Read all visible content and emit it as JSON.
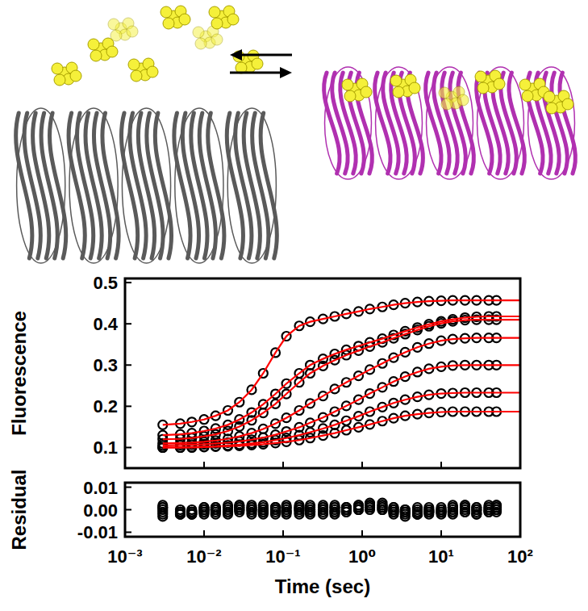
{
  "chart_data": [
    {
      "type": "scatter",
      "y_label": "Fluorescence",
      "log": "x",
      "tick_labels": "y",
      "xlim": [
        0.001,
        100
      ],
      "ylim": [
        0.05,
        0.51
      ],
      "xticks": [
        {
          "value": 0.001,
          "label": "10⁻³"
        },
        {
          "value": 0.01,
          "label": "10⁻²"
        },
        {
          "value": 0.1,
          "label": "10⁻¹"
        },
        {
          "value": 1,
          "label": "10⁰"
        },
        {
          "value": 10,
          "label": "10¹"
        },
        {
          "value": 100,
          "label": "10²"
        }
      ],
      "yticks": [
        0.1,
        0.2,
        0.3,
        0.4,
        0.5
      ],
      "x": [
        0.003,
        0.005,
        0.007,
        0.01,
        0.014,
        0.02,
        0.028,
        0.04,
        0.056,
        0.08,
        0.11,
        0.16,
        0.22,
        0.32,
        0.45,
        0.63,
        0.9,
        1.25,
        1.8,
        2.5,
        3.5,
        5,
        7,
        10,
        14,
        20,
        28,
        40,
        50,
        100
      ],
      "series": [
        {
          "type": "scatter",
          "marker": "circle",
          "color": "#000000",
          "values": [
            0.155,
            0.158,
            0.162,
            0.168,
            0.177,
            0.19,
            0.21,
            0.24,
            0.28,
            0.33,
            0.37,
            0.395,
            0.405,
            0.412,
            0.418,
            0.424,
            0.43,
            0.436,
            0.441,
            0.446,
            0.45,
            0.453,
            0.455,
            0.456,
            0.457,
            0.457,
            0.457,
            0.457,
            0.457,
            null
          ]
        },
        {
          "type": "scatter",
          "marker": "circle",
          "color": "#000000",
          "values": [
            0.13,
            0.132,
            0.135,
            0.14,
            0.146,
            0.155,
            0.168,
            0.185,
            0.205,
            0.23,
            0.255,
            0.28,
            0.3,
            0.315,
            0.327,
            0.337,
            0.346,
            0.355,
            0.364,
            0.373,
            0.382,
            0.391,
            0.399,
            0.406,
            0.411,
            0.415,
            0.417,
            0.418,
            0.418,
            null
          ]
        },
        {
          "type": "scatter",
          "marker": "circle",
          "color": "#000000",
          "values": [
            0.12,
            0.121,
            0.123,
            0.127,
            0.132,
            0.14,
            0.151,
            0.166,
            0.184,
            0.206,
            0.23,
            0.258,
            0.28,
            0.298,
            0.312,
            0.324,
            0.335,
            0.345,
            0.355,
            0.365,
            0.375,
            0.385,
            0.394,
            0.401,
            0.406,
            0.409,
            0.41,
            0.41,
            0.41,
            null
          ]
        },
        {
          "type": "scatter",
          "marker": "circle",
          "color": "#000000",
          "values": [
            0.11,
            0.111,
            0.112,
            0.114,
            0.117,
            0.121,
            0.127,
            0.135,
            0.145,
            0.158,
            0.172,
            0.19,
            0.207,
            0.225,
            0.242,
            0.258,
            0.274,
            0.289,
            0.304,
            0.318,
            0.331,
            0.343,
            0.352,
            0.359,
            0.363,
            0.365,
            0.366,
            0.366,
            0.366,
            null
          ]
        },
        {
          "type": "scatter",
          "marker": "circle",
          "color": "#000000",
          "values": [
            0.105,
            0.106,
            0.107,
            0.108,
            0.11,
            0.112,
            0.115,
            0.119,
            0.124,
            0.131,
            0.139,
            0.149,
            0.16,
            0.173,
            0.187,
            0.201,
            0.216,
            0.231,
            0.246,
            0.26,
            0.272,
            0.283,
            0.291,
            0.296,
            0.299,
            0.3,
            0.3,
            0.3,
            0.3,
            null
          ]
        },
        {
          "type": "scatter",
          "marker": "circle",
          "color": "#000000",
          "values": [
            0.1,
            0.1,
            0.101,
            0.102,
            0.103,
            0.105,
            0.107,
            0.11,
            0.113,
            0.118,
            0.123,
            0.13,
            0.137,
            0.146,
            0.155,
            0.165,
            0.176,
            0.187,
            0.198,
            0.208,
            0.216,
            0.223,
            0.228,
            0.231,
            0.232,
            0.233,
            0.233,
            0.233,
            0.233,
            null
          ]
        },
        {
          "type": "scatter",
          "marker": "circle",
          "color": "#000000",
          "values": [
            0.1,
            0.1,
            0.1,
            0.101,
            0.102,
            0.103,
            0.104,
            0.106,
            0.108,
            0.111,
            0.114,
            0.118,
            0.123,
            0.129,
            0.135,
            0.142,
            0.149,
            0.156,
            0.164,
            0.171,
            0.177,
            0.181,
            0.184,
            0.186,
            0.187,
            0.187,
            0.187,
            0.187,
            0.187,
            null
          ]
        },
        {
          "type": "line",
          "line_style": "solid",
          "color": "#ff0000",
          "values": [
            0.155,
            0.158,
            0.162,
            0.168,
            0.177,
            0.19,
            0.21,
            0.24,
            0.28,
            0.33,
            0.37,
            0.395,
            0.405,
            0.412,
            0.418,
            0.424,
            0.43,
            0.436,
            0.441,
            0.446,
            0.45,
            0.453,
            0.455,
            0.456,
            0.457,
            0.457,
            0.457,
            0.457,
            0.457,
            0.457
          ]
        },
        {
          "type": "line",
          "line_style": "solid",
          "color": "#ff0000",
          "values": [
            0.13,
            0.132,
            0.135,
            0.14,
            0.146,
            0.155,
            0.168,
            0.185,
            0.205,
            0.23,
            0.255,
            0.28,
            0.3,
            0.315,
            0.327,
            0.337,
            0.346,
            0.355,
            0.364,
            0.373,
            0.382,
            0.391,
            0.399,
            0.406,
            0.411,
            0.415,
            0.417,
            0.418,
            0.418,
            0.418
          ]
        },
        {
          "type": "line",
          "line_style": "solid",
          "color": "#ff0000",
          "values": [
            0.12,
            0.121,
            0.123,
            0.127,
            0.132,
            0.14,
            0.151,
            0.166,
            0.184,
            0.206,
            0.23,
            0.258,
            0.28,
            0.298,
            0.312,
            0.324,
            0.335,
            0.345,
            0.355,
            0.365,
            0.375,
            0.385,
            0.394,
            0.401,
            0.406,
            0.409,
            0.41,
            0.41,
            0.41,
            0.41
          ]
        },
        {
          "type": "line",
          "line_style": "solid",
          "color": "#ff0000",
          "values": [
            0.11,
            0.111,
            0.112,
            0.114,
            0.117,
            0.121,
            0.127,
            0.135,
            0.145,
            0.158,
            0.172,
            0.19,
            0.207,
            0.225,
            0.242,
            0.258,
            0.274,
            0.289,
            0.304,
            0.318,
            0.331,
            0.343,
            0.352,
            0.359,
            0.363,
            0.365,
            0.366,
            0.366,
            0.366,
            0.366
          ]
        },
        {
          "type": "line",
          "line_style": "solid",
          "color": "#ff0000",
          "values": [
            0.105,
            0.106,
            0.107,
            0.108,
            0.11,
            0.112,
            0.115,
            0.119,
            0.124,
            0.131,
            0.139,
            0.149,
            0.16,
            0.173,
            0.187,
            0.201,
            0.216,
            0.231,
            0.246,
            0.26,
            0.272,
            0.283,
            0.291,
            0.296,
            0.299,
            0.3,
            0.3,
            0.3,
            0.3,
            0.3
          ]
        },
        {
          "type": "line",
          "line_style": "solid",
          "color": "#ff0000",
          "values": [
            0.1,
            0.1,
            0.101,
            0.102,
            0.103,
            0.105,
            0.107,
            0.11,
            0.113,
            0.118,
            0.123,
            0.13,
            0.137,
            0.146,
            0.155,
            0.165,
            0.176,
            0.187,
            0.198,
            0.208,
            0.216,
            0.223,
            0.228,
            0.231,
            0.232,
            0.233,
            0.233,
            0.233,
            0.233,
            0.233
          ]
        },
        {
          "type": "line",
          "line_style": "solid",
          "color": "#ff0000",
          "values": [
            0.1,
            0.1,
            0.1,
            0.101,
            0.102,
            0.103,
            0.104,
            0.106,
            0.108,
            0.111,
            0.114,
            0.118,
            0.123,
            0.129,
            0.135,
            0.142,
            0.149,
            0.156,
            0.164,
            0.171,
            0.177,
            0.181,
            0.184,
            0.186,
            0.187,
            0.187,
            0.187,
            0.187,
            0.187,
            0.187
          ]
        }
      ]
    },
    {
      "type": "scatter",
      "x_label": "Time (sec)",
      "y_label": "Residual",
      "log": "x",
      "xlim": [
        0.001,
        100
      ],
      "ylim": [
        -0.012,
        0.012
      ],
      "xticks": [
        {
          "value": 0.001,
          "label": "10⁻³"
        },
        {
          "value": 0.01,
          "label": "10⁻²"
        },
        {
          "value": 0.1,
          "label": "10⁻¹"
        },
        {
          "value": 1,
          "label": "10⁰"
        },
        {
          "value": 10,
          "label": "10¹"
        },
        {
          "value": 100,
          "label": "10²"
        }
      ],
      "yticks": [
        -0.01,
        {
          "value": 0,
          "label": "0.00"
        },
        0.01
      ],
      "x": [
        0.003,
        0.005,
        0.007,
        0.01,
        0.014,
        0.02,
        0.028,
        0.04,
        0.056,
        0.08,
        0.11,
        0.16,
        0.22,
        0.32,
        0.45,
        0.63,
        0.9,
        1.25,
        1.8,
        2.5,
        3.5,
        5,
        7,
        10,
        14,
        20,
        28,
        40,
        50
      ],
      "series": [
        {
          "type": "scatter",
          "marker": "circle",
          "color": "#000000",
          "values": [
            0.001,
            -0.001,
            -0.002,
            0,
            0.001,
            0.001,
            0.002,
            0.001,
            0,
            -0.001,
            0.001,
            0.002,
            0.001,
            0,
            -0.001,
            0.001,
            0.002,
            0.002,
            0.001,
            -0.001,
            -0.002,
            -0.001,
            0,
            0.001,
            0.002,
            0.001,
            0,
            0.001,
            0.002
          ]
        },
        {
          "type": "scatter",
          "marker": "circle",
          "color": "#000000",
          "values": [
            0,
            -0.002,
            -0.001,
            0.001,
            0,
            0.002,
            0.001,
            0,
            -0.001,
            0.001,
            0.002,
            0.001,
            0,
            0.001,
            0,
            -0.001,
            0.001,
            0.003,
            0.002,
            0,
            -0.001,
            -0.002,
            -0.001,
            0,
            0.001,
            0.002,
            0.001,
            0,
            0.001
          ]
        },
        {
          "type": "scatter",
          "marker": "circle",
          "color": "#000000",
          "values": [
            -0.001,
            -0.001,
            -0.002,
            0.001,
            0.001,
            0,
            0.002,
            0.002,
            0.001,
            0,
            0.001,
            0.001,
            0.002,
            0.002,
            0.001,
            0,
            0,
            0.002,
            0.001,
            -0.001,
            -0.001,
            -0.002,
            0,
            -0.001,
            0.001,
            0.002,
            0,
            -0.001,
            0
          ]
        },
        {
          "type": "scatter",
          "marker": "circle",
          "color": "#000000",
          "values": [
            0.002,
            -0.002,
            -0.001,
            -0.001,
            0,
            0.001,
            0,
            0.001,
            0.002,
            0.001,
            -0.001,
            0,
            -0.001,
            0.001,
            0.002,
            0.001,
            0.001,
            0.002,
            0.003,
            0.001,
            0,
            -0.001,
            -0.001,
            -0.002,
            0,
            0.001,
            -0.001,
            0.001,
            0.002
          ]
        },
        {
          "type": "scatter",
          "marker": "circle",
          "color": "#000000",
          "values": [
            -0.002,
            -0.001,
            -0.002,
            0,
            -0.001,
            -0.001,
            0.001,
            0,
            -0.001,
            -0.002,
            0,
            -0.001,
            -0.002,
            -0.001,
            -0.002,
            -0.001,
            0.001,
            0.001,
            0,
            -0.002,
            -0.003,
            -0.002,
            -0.001,
            -0.001,
            -0.002,
            0,
            -0.002,
            -0.001,
            -0.001
          ]
        },
        {
          "type": "scatter",
          "marker": "circle",
          "color": "#000000",
          "values": [
            0.001,
            0,
            -0.001,
            -0.002,
            0,
            -0.002,
            -0.001,
            -0.001,
            0,
            0.001,
            -0.001,
            -0.002,
            0,
            -0.002,
            -0.001,
            0.001,
            0.002,
            0,
            0.002,
            0.001,
            0,
            0.001,
            0.001,
            0,
            -0.001,
            -0.001,
            0.001,
            0.002,
            0.001
          ]
        },
        {
          "type": "scatter",
          "marker": "circle",
          "color": "#000000",
          "values": [
            -0.003,
            -0.002,
            0,
            -0.001,
            -0.002,
            -0.001,
            0,
            -0.002,
            -0.002,
            0,
            -0.002,
            0,
            -0.001,
            0,
            0.001,
            0,
            0,
            0.001,
            0,
            0,
            -0.001,
            0,
            -0.002,
            -0.001,
            -0.001,
            -0.001,
            -0.002,
            0,
            0
          ]
        }
      ]
    }
  ]
}
